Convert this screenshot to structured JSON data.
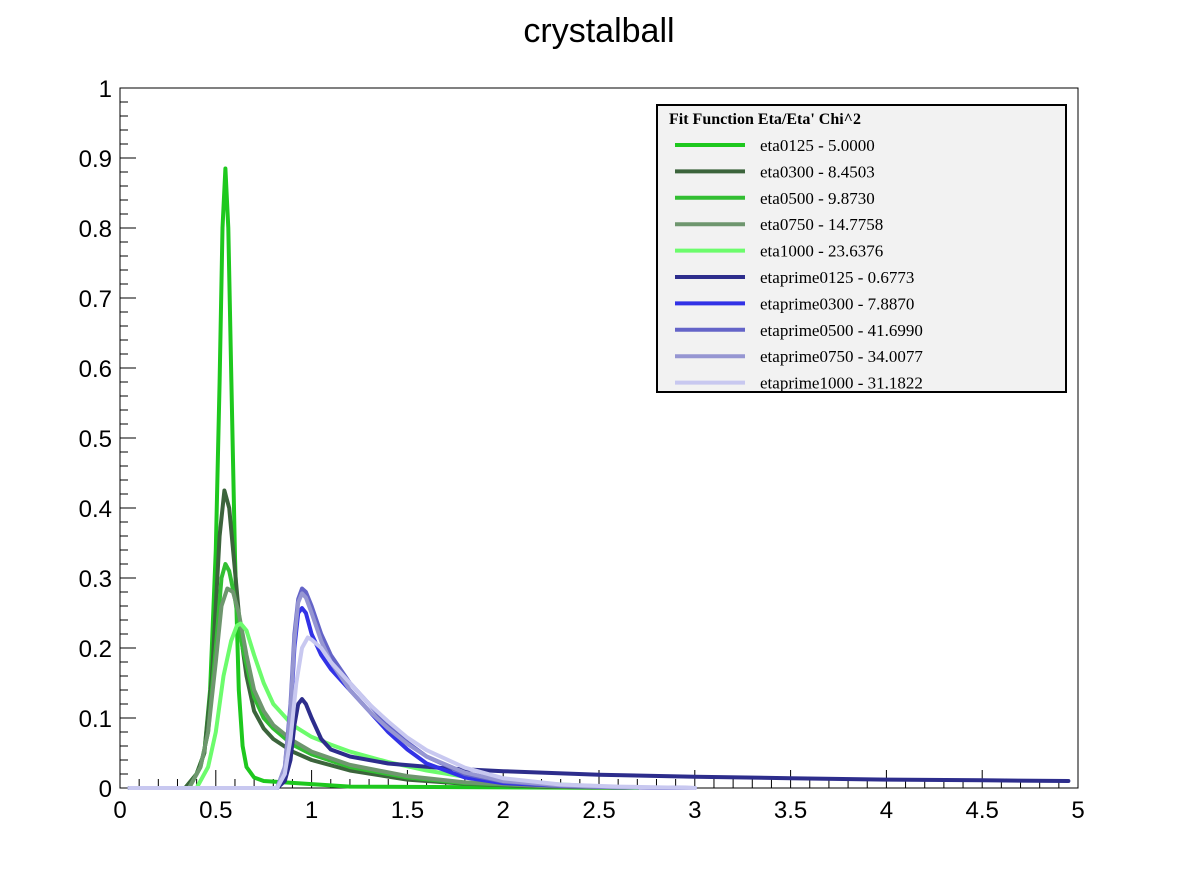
{
  "chart_data": {
    "type": "line",
    "title": "crystalball",
    "xlabel": "",
    "ylabel": "",
    "xlim": [
      0,
      5
    ],
    "ylim": [
      0,
      1
    ],
    "grid": false,
    "legend_position": "top-right",
    "x_ticks": [
      "0",
      "0.5",
      "1",
      "1.5",
      "2",
      "2.5",
      "3",
      "3.5",
      "4",
      "4.5",
      "5"
    ],
    "y_ticks": [
      "0",
      "0.1",
      "0.2",
      "0.3",
      "0.4",
      "0.5",
      "0.6",
      "0.7",
      "0.8",
      "0.9",
      "1"
    ],
    "legend_title": "Fit Function Eta/Eta' Chi^2",
    "series": [
      {
        "name": "eta0125 - 5.0000",
        "color": "#1ec81e",
        "x": [
          0.05,
          0.34,
          0.4,
          0.44,
          0.47,
          0.5,
          0.52,
          0.535,
          0.55,
          0.565,
          0.58,
          0.6,
          0.62,
          0.64,
          0.66,
          0.7,
          0.75,
          1.2,
          2.7
        ],
        "y": [
          0,
          0,
          0.02,
          0.05,
          0.14,
          0.34,
          0.58,
          0.8,
          0.885,
          0.8,
          0.6,
          0.33,
          0.14,
          0.06,
          0.03,
          0.015,
          0.01,
          0.002,
          0
        ]
      },
      {
        "name": "eta0300 - 8.4503",
        "color": "#3c643c",
        "x": [
          0.05,
          0.34,
          0.4,
          0.44,
          0.48,
          0.5,
          0.52,
          0.545,
          0.57,
          0.6,
          0.62,
          0.64,
          0.66,
          0.7,
          0.75,
          0.8,
          0.9,
          1.0,
          1.2,
          1.5,
          1.8,
          2.2,
          2.7
        ],
        "y": [
          0,
          0,
          0.02,
          0.05,
          0.16,
          0.26,
          0.36,
          0.425,
          0.4,
          0.31,
          0.25,
          0.2,
          0.16,
          0.11,
          0.085,
          0.07,
          0.052,
          0.04,
          0.025,
          0.012,
          0.006,
          0.002,
          0
        ]
      },
      {
        "name": "eta0500 - 9.8730",
        "color": "#32be32",
        "x": [
          0.05,
          0.36,
          0.42,
          0.46,
          0.5,
          0.53,
          0.55,
          0.57,
          0.6,
          0.64,
          0.7,
          0.75,
          0.8,
          0.9,
          1.0,
          1.2,
          1.5,
          1.8,
          2.2,
          2.7
        ],
        "y": [
          0,
          0,
          0.03,
          0.08,
          0.2,
          0.3,
          0.32,
          0.31,
          0.27,
          0.2,
          0.13,
          0.1,
          0.085,
          0.062,
          0.048,
          0.03,
          0.015,
          0.007,
          0.003,
          0
        ]
      },
      {
        "name": "eta0750 - 14.7758",
        "color": "#6e966e",
        "x": [
          0.05,
          0.36,
          0.42,
          0.46,
          0.5,
          0.53,
          0.56,
          0.59,
          0.62,
          0.66,
          0.7,
          0.75,
          0.8,
          0.9,
          1.0,
          1.2,
          1.5,
          1.8,
          2.2,
          2.7
        ],
        "y": [
          0,
          0,
          0.03,
          0.08,
          0.18,
          0.26,
          0.285,
          0.28,
          0.25,
          0.19,
          0.14,
          0.11,
          0.09,
          0.068,
          0.052,
          0.033,
          0.017,
          0.008,
          0.003,
          0
        ]
      },
      {
        "name": "eta1000 - 23.6376",
        "color": "#6cfc6c",
        "x": [
          0.05,
          0.4,
          0.46,
          0.5,
          0.54,
          0.58,
          0.61,
          0.63,
          0.66,
          0.7,
          0.75,
          0.8,
          0.9,
          1.0,
          1.1,
          1.2,
          1.4,
          1.6,
          1.8,
          2.0,
          2.3,
          2.7
        ],
        "y": [
          0,
          0,
          0.03,
          0.08,
          0.16,
          0.21,
          0.232,
          0.235,
          0.225,
          0.19,
          0.15,
          0.12,
          0.09,
          0.073,
          0.062,
          0.052,
          0.037,
          0.025,
          0.016,
          0.01,
          0.005,
          0
        ]
      },
      {
        "name": "etaprime0125 - 0.6773",
        "color": "#2d2d8c",
        "x": [
          0.05,
          0.82,
          0.86,
          0.89,
          0.91,
          0.93,
          0.95,
          0.97,
          1.0,
          1.05,
          1.1,
          1.2,
          1.4,
          1.7,
          2.0,
          2.5,
          3.0,
          3.5,
          4.0,
          4.5,
          4.95
        ],
        "y": [
          0,
          0,
          0.01,
          0.04,
          0.09,
          0.12,
          0.127,
          0.12,
          0.1,
          0.07,
          0.055,
          0.045,
          0.035,
          0.028,
          0.024,
          0.019,
          0.016,
          0.014,
          0.012,
          0.011,
          0.01
        ]
      },
      {
        "name": "etaprime0300 - 7.8870",
        "color": "#3232e6",
        "x": [
          0.05,
          0.82,
          0.86,
          0.89,
          0.91,
          0.93,
          0.95,
          0.97,
          1.0,
          1.05,
          1.1,
          1.2,
          1.3,
          1.4,
          1.5,
          1.6,
          1.8,
          2.0,
          2.3,
          2.6,
          3.0
        ],
        "y": [
          0,
          0,
          0.02,
          0.1,
          0.2,
          0.25,
          0.257,
          0.25,
          0.22,
          0.19,
          0.17,
          0.14,
          0.11,
          0.08,
          0.055,
          0.035,
          0.015,
          0.007,
          0.003,
          0.001,
          0
        ]
      },
      {
        "name": "etaprime0500 - 41.6990",
        "color": "#6464c8",
        "x": [
          0.05,
          0.82,
          0.86,
          0.89,
          0.91,
          0.93,
          0.95,
          0.97,
          1.0,
          1.05,
          1.1,
          1.2,
          1.3,
          1.4,
          1.5,
          1.6,
          1.8,
          2.0,
          2.3,
          2.6,
          3.0
        ],
        "y": [
          0,
          0,
          0.03,
          0.12,
          0.22,
          0.27,
          0.285,
          0.28,
          0.26,
          0.22,
          0.19,
          0.15,
          0.12,
          0.09,
          0.065,
          0.045,
          0.02,
          0.009,
          0.003,
          0.001,
          0
        ]
      },
      {
        "name": "etaprime0750 - 34.0077",
        "color": "#9696d2",
        "x": [
          0.05,
          0.82,
          0.86,
          0.89,
          0.91,
          0.93,
          0.95,
          0.97,
          1.0,
          1.05,
          1.1,
          1.2,
          1.3,
          1.4,
          1.5,
          1.6,
          1.8,
          2.0,
          2.3,
          2.6,
          3.0
        ],
        "y": [
          0,
          0,
          0.03,
          0.11,
          0.21,
          0.265,
          0.278,
          0.272,
          0.25,
          0.21,
          0.18,
          0.14,
          0.11,
          0.085,
          0.063,
          0.045,
          0.022,
          0.01,
          0.004,
          0.001,
          0
        ]
      },
      {
        "name": "etaprime1000 - 31.1822",
        "color": "#c8c8f0",
        "x": [
          0.05,
          0.82,
          0.86,
          0.89,
          0.92,
          0.95,
          0.98,
          1.0,
          1.05,
          1.1,
          1.2,
          1.3,
          1.4,
          1.5,
          1.6,
          1.8,
          2.0,
          2.3,
          2.6,
          3.0
        ],
        "y": [
          0,
          0,
          0.02,
          0.07,
          0.15,
          0.2,
          0.215,
          0.212,
          0.2,
          0.18,
          0.15,
          0.12,
          0.095,
          0.072,
          0.054,
          0.029,
          0.014,
          0.005,
          0.002,
          0
        ]
      }
    ]
  }
}
